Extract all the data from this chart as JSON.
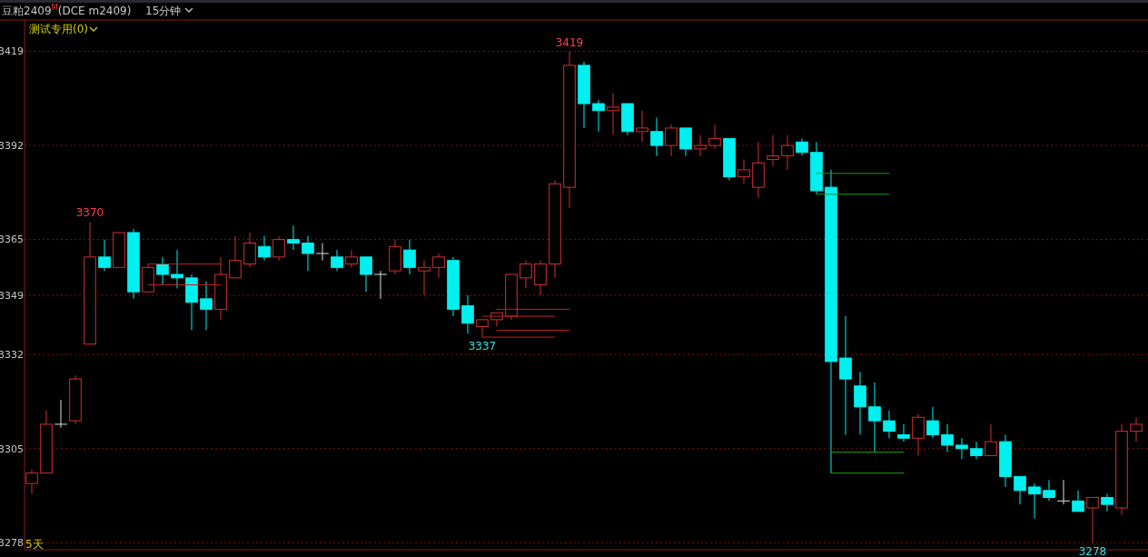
{
  "chart_data": {
    "type": "candlestick",
    "title": "豆粕2409$^{M}$(DCE m2409)",
    "subtitle": "15分钟",
    "categories": [
      null,
      null,
      null,
      null,
      null,
      null,
      null,
      null,
      null,
      null,
      null,
      null,
      null,
      null,
      null,
      null,
      null,
      null,
      null,
      null,
      null,
      null,
      null,
      null,
      null,
      null,
      null,
      null,
      null,
      null,
      null,
      null,
      null,
      null,
      null,
      null,
      null,
      null,
      null,
      null,
      null,
      null,
      null,
      null,
      null,
      null,
      null,
      null,
      null,
      null,
      null,
      null,
      null,
      null,
      null,
      null,
      null,
      null,
      null,
      null,
      null,
      null,
      null,
      null,
      null,
      null,
      null,
      null,
      null,
      null,
      null,
      null,
      null,
      null,
      null,
      null,
      null
    ],
    "ohlc": [
      [
        3295,
        3299,
        3292,
        3298
      ],
      [
        3298,
        3316,
        3298,
        3312
      ],
      [
        3312,
        3319,
        3311,
        3312
      ],
      [
        3313,
        3326,
        3312,
        3325
      ],
      [
        3335,
        3370,
        3335,
        3360
      ],
      [
        3360,
        3365,
        3356,
        3357
      ],
      [
        3357,
        3367,
        3357,
        3367
      ],
      [
        3367,
        3368,
        3348,
        3350
      ],
      [
        3350,
        3358,
        3350,
        3357
      ],
      [
        3358,
        3360,
        3352,
        3355
      ],
      [
        3355,
        3362,
        3351,
        3354
      ],
      [
        3354,
        3355,
        3339,
        3347
      ],
      [
        3348,
        3353,
        3339,
        3345
      ],
      [
        3345,
        3360,
        3342,
        3355
      ],
      [
        3354,
        3366,
        3354,
        3359
      ],
      [
        3358,
        3367,
        3357,
        3364
      ],
      [
        3363,
        3366,
        3359,
        3360
      ],
      [
        3360,
        3366,
        3359,
        3365
      ],
      [
        3365,
        3369,
        3362,
        3364
      ],
      [
        3364,
        3366,
        3356,
        3361
      ],
      [
        3361,
        3364,
        3359,
        3361
      ],
      [
        3360,
        3362,
        3356,
        3357
      ],
      [
        3358,
        3362,
        3357,
        3360
      ],
      [
        3360,
        3360,
        3350,
        3355
      ],
      [
        3355,
        3356,
        3348,
        3355
      ],
      [
        3356,
        3365,
        3355,
        3363
      ],
      [
        3362,
        3365,
        3355,
        3357
      ],
      [
        3356,
        3359,
        3349,
        3357
      ],
      [
        3357,
        3361,
        3354,
        3360
      ],
      [
        3359,
        3360,
        3343,
        3345
      ],
      [
        3346,
        3349,
        3338,
        3341
      ],
      [
        3340,
        3342,
        3337,
        3342
      ],
      [
        3342,
        3344,
        3340,
        3344
      ],
      [
        3343,
        3355,
        3342,
        3355
      ],
      [
        3354,
        3359,
        3351,
        3358
      ],
      [
        3352,
        3359,
        3349,
        3358
      ],
      [
        3358,
        3382,
        3354,
        3381
      ],
      [
        3380,
        3419,
        3374,
        3415
      ],
      [
        3415,
        3416,
        3397,
        3404
      ],
      [
        3404,
        3405,
        3396,
        3402
      ],
      [
        3402,
        3407,
        3395,
        3403
      ],
      [
        3404,
        3404,
        3395,
        3396
      ],
      [
        3396,
        3402,
        3393,
        3397
      ],
      [
        3396,
        3400,
        3389,
        3392
      ],
      [
        3392,
        3398,
        3389,
        3397
      ],
      [
        3397,
        3397,
        3389,
        3391
      ],
      [
        3391,
        3395,
        3389,
        3392
      ],
      [
        3392,
        3398,
        3391,
        3394
      ],
      [
        3394,
        3394,
        3382,
        3383
      ],
      [
        3383,
        3388,
        3381,
        3385
      ],
      [
        3380,
        3393,
        3377,
        3387
      ],
      [
        3388,
        3395,
        3386,
        3389
      ],
      [
        3389,
        3395,
        3385,
        3392
      ],
      [
        3393,
        3394,
        3389,
        3390
      ],
      [
        3390,
        3393,
        3378,
        3379
      ],
      [
        3380,
        3385,
        3298,
        3330
      ],
      [
        3331,
        3343,
        3309,
        3325
      ],
      [
        3323,
        3327,
        3309,
        3317
      ],
      [
        3317,
        3324,
        3304,
        3313
      ],
      [
        3313,
        3316,
        3308,
        3310
      ],
      [
        3309,
        3312,
        3307,
        3308
      ],
      [
        3308,
        3315,
        3303,
        3314
      ],
      [
        3313,
        3317,
        3308,
        3309
      ],
      [
        3309,
        3312,
        3304,
        3306
      ],
      [
        3306,
        3308,
        3302,
        3305
      ],
      [
        3305,
        3307,
        3302,
        3303
      ],
      [
        3303,
        3312,
        3303,
        3307
      ],
      [
        3307,
        3309,
        3294,
        3297
      ],
      [
        3297,
        3297,
        3289,
        3293
      ],
      [
        3294,
        3295,
        3285,
        3292
      ],
      [
        3293,
        3296,
        3290,
        3291
      ],
      [
        3290,
        3296,
        3289,
        3290
      ],
      [
        3290,
        3293,
        3287,
        3287
      ],
      [
        3288,
        3291,
        3278,
        3291
      ],
      [
        3291,
        3292,
        3287,
        3289
      ],
      [
        3288,
        3312,
        3286,
        3310
      ],
      [
        3310,
        3314,
        3307,
        3312
      ]
    ],
    "colors": [
      "#d03030",
      "#d03030",
      "#e0e0e0",
      "#d03030",
      "#d03030",
      "#00f0f0",
      "#d03030",
      "#00f0f0",
      "#d03030",
      "#00f0f0",
      "#00f0f0",
      "#00f0f0",
      "#00f0f0",
      "#d03030",
      "#d03030",
      "#d03030",
      "#00f0f0",
      "#d03030",
      "#00f0f0",
      "#00f0f0",
      "#e0e0e0",
      "#00f0f0",
      "#d03030",
      "#00f0f0",
      "#e0e0e0",
      "#d03030",
      "#00f0f0",
      "#d03030",
      "#d03030",
      "#00f0f0",
      "#00f0f0",
      "#d03030",
      "#d03030",
      "#d03030",
      "#d03030",
      "#d03030",
      "#d03030",
      "#d03030",
      "#00f0f0",
      "#00f0f0",
      "#d03030",
      "#00f0f0",
      "#d03030",
      "#00f0f0",
      "#d03030",
      "#00f0f0",
      "#d03030",
      "#d03030",
      "#00f0f0",
      "#d03030",
      "#d03030",
      "#d03030",
      "#d03030",
      "#00f0f0",
      "#00f0f0",
      "#00f0f0",
      "#00f0f0",
      "#00f0f0",
      "#00f0f0",
      "#00f0f0",
      "#00f0f0",
      "#d03030",
      "#00f0f0",
      "#00f0f0",
      "#00f0f0",
      "#00f0f0",
      "#d03030",
      "#00f0f0",
      "#00f0f0",
      "#00f0f0",
      "#00f0f0",
      "#e0e0e0",
      "#00f0f0",
      "#d03030",
      "#00f0f0",
      "#d03030",
      "#d03030"
    ],
    "series": [
      {
        "type": "line",
        "color": "#c02020",
        "values": [
          null,
          null,
          null,
          null,
          null,
          null,
          null,
          null,
          3358,
          3358,
          3358,
          3358,
          3358,
          3358,
          null,
          null,
          null,
          null,
          null,
          null,
          null,
          null,
          null,
          null,
          null,
          null,
          null,
          null,
          null,
          null,
          null,
          null,
          null,
          null,
          null,
          null,
          null,
          null,
          null,
          null,
          null,
          null,
          null,
          null,
          null,
          null,
          null,
          null,
          null,
          null,
          null,
          null,
          null,
          null,
          null,
          null,
          null,
          null,
          null,
          null,
          null,
          null,
          null,
          null,
          null,
          null,
          null,
          null,
          null,
          null,
          null,
          null,
          null,
          null,
          null,
          null,
          null
        ]
      },
      {
        "type": "line",
        "color": "#c02020",
        "values": [
          null,
          null,
          null,
          null,
          null,
          null,
          null,
          null,
          3352,
          3352,
          3352,
          3352,
          3352,
          3352,
          null,
          null,
          null,
          null,
          null,
          null,
          null,
          null,
          null,
          null,
          null,
          null,
          null,
          null,
          null,
          null,
          null,
          null,
          null,
          null,
          null,
          null,
          null,
          null,
          null,
          null,
          null,
          null,
          null,
          null,
          null,
          null,
          null,
          null,
          null,
          null,
          null,
          null,
          null,
          null,
          null,
          null,
          null,
          null,
          null,
          null,
          null,
          null,
          null,
          null,
          null,
          null,
          null,
          null,
          null,
          null,
          null,
          null,
          null,
          null,
          null,
          null,
          null
        ]
      },
      {
        "type": "line",
        "color": "#c02020",
        "values": [
          null,
          null,
          null,
          null,
          null,
          null,
          null,
          null,
          null,
          null,
          null,
          null,
          null,
          null,
          null,
          null,
          null,
          null,
          null,
          null,
          null,
          null,
          null,
          null,
          null,
          null,
          null,
          null,
          null,
          null,
          null,
          null,
          3345,
          3345,
          3345,
          3345,
          3345,
          3345,
          null,
          null,
          null,
          null,
          null,
          null,
          null,
          null,
          null,
          null,
          null,
          null,
          null,
          null,
          null,
          null,
          null,
          null,
          null,
          null,
          null,
          null,
          null,
          null,
          null,
          null,
          null,
          null,
          null,
          null,
          null,
          null,
          null,
          null,
          null,
          null,
          null,
          null,
          null
        ]
      },
      {
        "type": "line",
        "color": "#c02020",
        "values": [
          null,
          null,
          null,
          null,
          null,
          null,
          null,
          null,
          null,
          null,
          null,
          null,
          null,
          null,
          null,
          null,
          null,
          null,
          null,
          null,
          null,
          null,
          null,
          null,
          null,
          null,
          null,
          null,
          null,
          null,
          null,
          3343,
          3343,
          3343,
          3343,
          3343,
          3343,
          null,
          null,
          null,
          null,
          null,
          null,
          null,
          null,
          null,
          null,
          null,
          null,
          null,
          null,
          null,
          null,
          null,
          null,
          null,
          null,
          null,
          null,
          null,
          null,
          null,
          null,
          null,
          null,
          null,
          null,
          null,
          null,
          null,
          null,
          null,
          null,
          null,
          null,
          null,
          null
        ]
      },
      {
        "type": "line",
        "color": "#c02020",
        "values": [
          null,
          null,
          null,
          null,
          null,
          null,
          null,
          null,
          null,
          null,
          null,
          null,
          null,
          null,
          null,
          null,
          null,
          null,
          null,
          null,
          null,
          null,
          null,
          null,
          null,
          null,
          null,
          null,
          null,
          null,
          null,
          null,
          3339,
          3339,
          3339,
          3339,
          3339,
          3339,
          null,
          null,
          null,
          null,
          null,
          null,
          null,
          null,
          null,
          null,
          null,
          null,
          null,
          null,
          null,
          null,
          null,
          null,
          null,
          null,
          null,
          null,
          null,
          null,
          null,
          null,
          null,
          null,
          null,
          null,
          null,
          null,
          null,
          null,
          null,
          null,
          null,
          null,
          null
        ]
      },
      {
        "type": "line",
        "color": "#c02020",
        "values": [
          null,
          null,
          null,
          null,
          null,
          null,
          null,
          null,
          null,
          null,
          null,
          null,
          null,
          null,
          null,
          null,
          null,
          null,
          null,
          null,
          null,
          null,
          null,
          null,
          null,
          null,
          null,
          null,
          null,
          null,
          null,
          3337,
          3337,
          3337,
          3337,
          3337,
          3337,
          null,
          null,
          null,
          null,
          null,
          null,
          null,
          null,
          null,
          null,
          null,
          null,
          null,
          null,
          null,
          null,
          null,
          null,
          null,
          null,
          null,
          null,
          null,
          null,
          null,
          null,
          null,
          null,
          null,
          null,
          null,
          null,
          null,
          null,
          null,
          null,
          null,
          null,
          null,
          null
        ]
      },
      {
        "type": "line",
        "color": "#1a9a1a",
        "values": [
          null,
          null,
          null,
          null,
          null,
          null,
          null,
          null,
          null,
          null,
          null,
          null,
          null,
          null,
          null,
          null,
          null,
          null,
          null,
          null,
          null,
          null,
          null,
          null,
          null,
          null,
          null,
          null,
          null,
          null,
          null,
          null,
          null,
          null,
          null,
          null,
          null,
          null,
          null,
          null,
          null,
          null,
          null,
          null,
          null,
          null,
          null,
          null,
          null,
          null,
          null,
          null,
          null,
          null,
          3384,
          3384,
          3384,
          3384,
          3384,
          3384,
          null,
          null,
          null,
          null,
          null,
          null,
          null,
          null,
          null,
          null,
          null,
          null,
          null,
          null,
          null,
          null,
          null
        ]
      },
      {
        "type": "line",
        "color": "#1a9a1a",
        "values": [
          null,
          null,
          null,
          null,
          null,
          null,
          null,
          null,
          null,
          null,
          null,
          null,
          null,
          null,
          null,
          null,
          null,
          null,
          null,
          null,
          null,
          null,
          null,
          null,
          null,
          null,
          null,
          null,
          null,
          null,
          null,
          null,
          null,
          null,
          null,
          null,
          null,
          null,
          null,
          null,
          null,
          null,
          null,
          null,
          null,
          null,
          null,
          null,
          null,
          null,
          null,
          null,
          null,
          null,
          3378,
          3378,
          3378,
          3378,
          3378,
          3378,
          null,
          null,
          null,
          null,
          null,
          null,
          null,
          null,
          null,
          null,
          null,
          null,
          null,
          null,
          null,
          null,
          null
        ]
      },
      {
        "type": "line",
        "color": "#1a9a1a",
        "values": [
          null,
          null,
          null,
          null,
          null,
          null,
          null,
          null,
          null,
          null,
          null,
          null,
          null,
          null,
          null,
          null,
          null,
          null,
          null,
          null,
          null,
          null,
          null,
          null,
          null,
          null,
          null,
          null,
          null,
          null,
          null,
          null,
          null,
          null,
          null,
          null,
          null,
          null,
          null,
          null,
          null,
          null,
          null,
          null,
          null,
          null,
          null,
          null,
          null,
          null,
          null,
          null,
          null,
          null,
          null,
          3304,
          3304,
          3304,
          3304,
          3304,
          3304,
          null,
          null,
          null,
          null,
          null,
          null,
          null,
          null,
          null,
          null,
          null,
          null,
          null,
          null,
          null,
          null
        ]
      },
      {
        "type": "line",
        "color": "#1a9a1a",
        "values": [
          null,
          null,
          null,
          null,
          null,
          null,
          null,
          null,
          null,
          null,
          null,
          null,
          null,
          null,
          null,
          null,
          null,
          null,
          null,
          null,
          null,
          null,
          null,
          null,
          null,
          null,
          null,
          null,
          null,
          null,
          null,
          null,
          null,
          null,
          null,
          null,
          null,
          null,
          null,
          null,
          null,
          null,
          null,
          null,
          null,
          null,
          null,
          null,
          null,
          null,
          null,
          null,
          null,
          null,
          null,
          3298,
          3298,
          3298,
          3298,
          3298,
          3298,
          null,
          null,
          null,
          null,
          null,
          null,
          null,
          null,
          null,
          null,
          null,
          null,
          null,
          null,
          null,
          null
        ]
      }
    ],
    "ylim": [
      3276,
      3428
    ],
    "yticks": [
      3278,
      3305,
      3332,
      3349,
      3365,
      3392,
      3419
    ],
    "grid": "y",
    "tick_labels": "y",
    "annotations": [
      "测试专用(0)",
      "5天",
      {
        "text": "3370",
        "y": 3370
      },
      {
        "text": "3419",
        "y": 3419
      },
      {
        "text": "3337",
        "y": 3337
      },
      {
        "text": "3278",
        "y": 3278
      }
    ]
  }
}
